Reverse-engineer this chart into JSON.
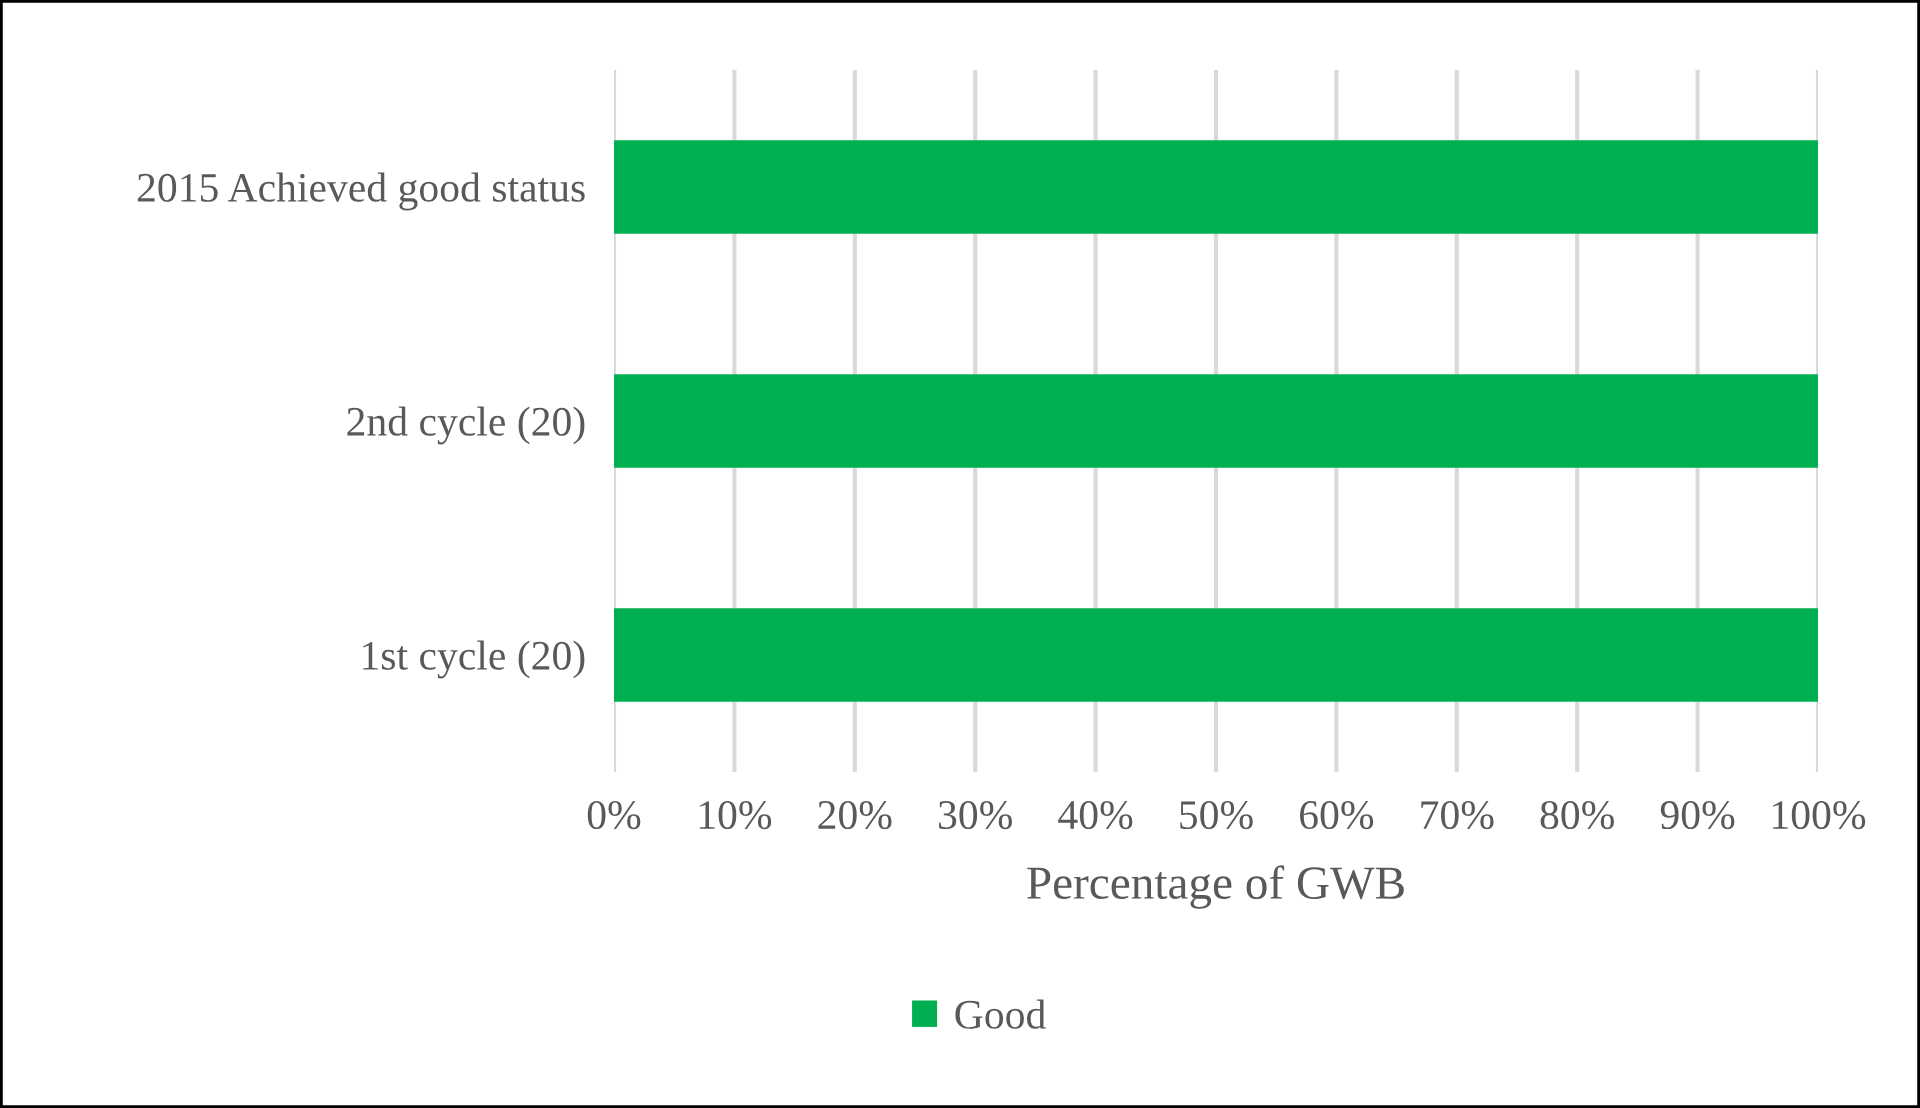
{
  "chart_data": {
    "type": "bar",
    "orientation": "horizontal",
    "xlabel": "Percentage of GWB",
    "categories": [
      "2015 Achieved good status",
      "2nd cycle (20)",
      "1st cycle (20)"
    ],
    "series": [
      {
        "name": "Good",
        "color": "#00b050",
        "values": [
          100,
          100,
          100
        ]
      }
    ],
    "xlim": [
      0,
      100
    ],
    "xticks": [
      {
        "value": 0,
        "label": "0%"
      },
      {
        "value": 10,
        "label": "10%"
      },
      {
        "value": 20,
        "label": "20%"
      },
      {
        "value": 30,
        "label": "30%"
      },
      {
        "value": 40,
        "label": "40%"
      },
      {
        "value": 50,
        "label": "50%"
      },
      {
        "value": 60,
        "label": "60%"
      },
      {
        "value": 70,
        "label": "70%"
      },
      {
        "value": 80,
        "label": "80%"
      },
      {
        "value": 90,
        "label": "90%"
      },
      {
        "value": 100,
        "label": "100%"
      }
    ],
    "grid": "x",
    "legend": "bottom"
  }
}
